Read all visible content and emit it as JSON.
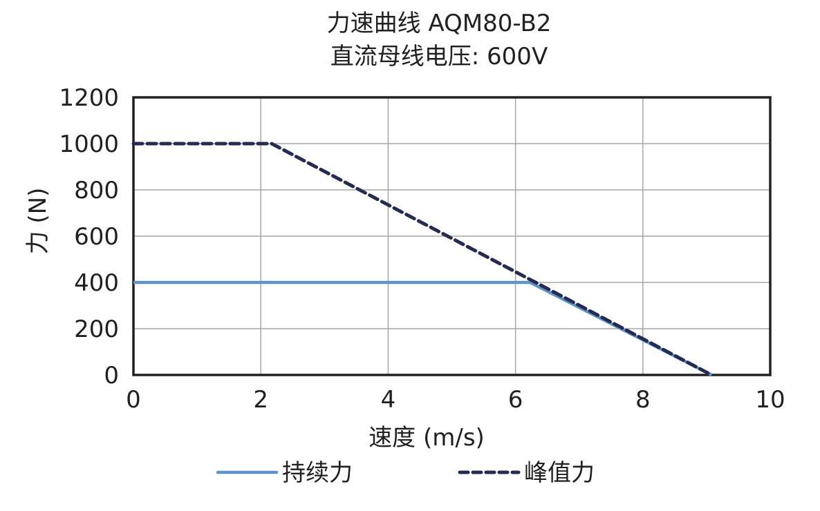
{
  "chart_data": {
    "type": "line",
    "title": "力速曲线 AQM80-B2",
    "subtitle": "直流母线电压: 600V",
    "xlabel": "速度 (m/s)",
    "ylabel": "力 (N)",
    "xlim": [
      0,
      10
    ],
    "ylim": [
      0,
      1200
    ],
    "xticks": [
      "0",
      "2",
      "4",
      "6",
      "8",
      "10"
    ],
    "yticks": [
      "0",
      "200",
      "400",
      "600",
      "800",
      "1000",
      "1200"
    ],
    "grid": true,
    "legend_position": "bottom",
    "series": [
      {
        "name": "持续力",
        "style": "solid",
        "color": "#5b94c8",
        "x": [
          0,
          6.23,
          9.08
        ],
        "y": [
          400,
          400,
          0
        ]
      },
      {
        "name": "峰值力",
        "style": "dashed",
        "color": "#262b52",
        "x": [
          0,
          2.17,
          9.08
        ],
        "y": [
          1000,
          1000,
          0
        ]
      }
    ]
  }
}
